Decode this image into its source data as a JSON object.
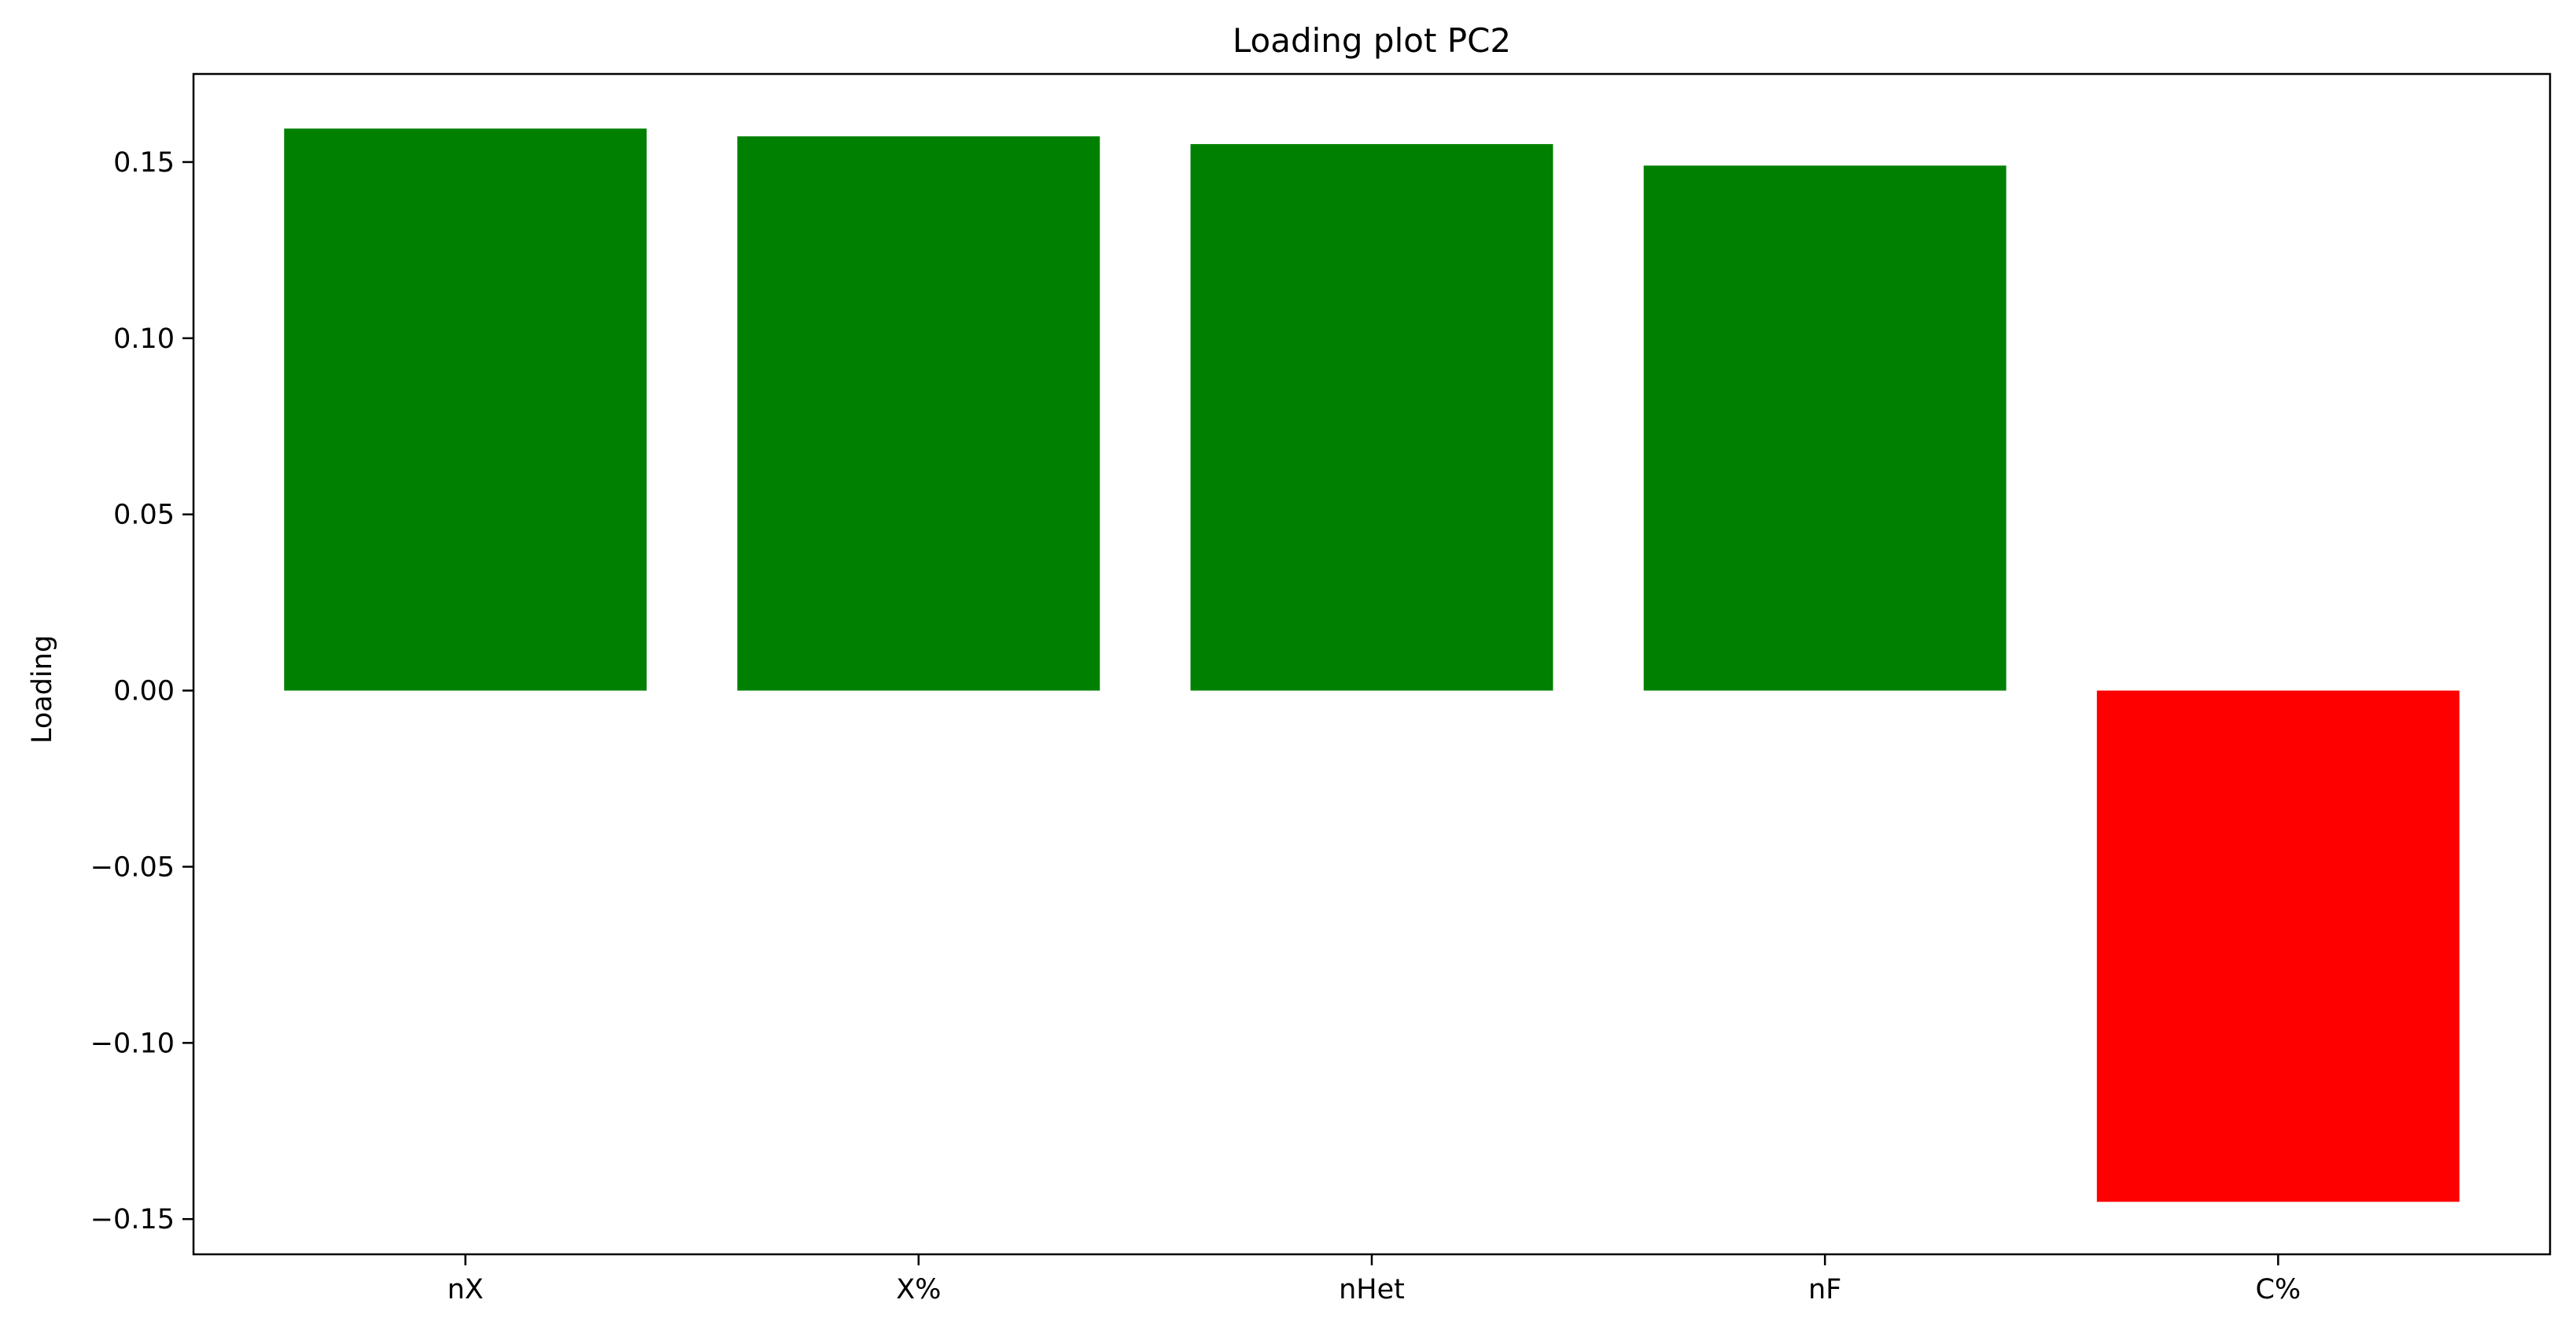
{
  "chart_data": {
    "type": "bar",
    "title": "Loading plot PC2",
    "xlabel": "",
    "ylabel": "Loading",
    "categories": [
      "nX",
      "X%",
      "nHet",
      "nF",
      "C%"
    ],
    "values": [
      0.1595,
      0.1573,
      0.1551,
      0.149,
      -0.1451
    ],
    "bar_colors": [
      "#008000",
      "#008000",
      "#008000",
      "#008000",
      "#ff0000"
    ],
    "ylim": [
      -0.16,
      0.175
    ],
    "yticks": [
      -0.15,
      -0.1,
      -0.05,
      0.0,
      0.05,
      0.1,
      0.15
    ],
    "ytick_labels": [
      "−0.15",
      "−0.10",
      "−0.05",
      "0.00",
      "0.05",
      "0.10",
      "0.15"
    ],
    "grid": false,
    "legend": "none"
  }
}
